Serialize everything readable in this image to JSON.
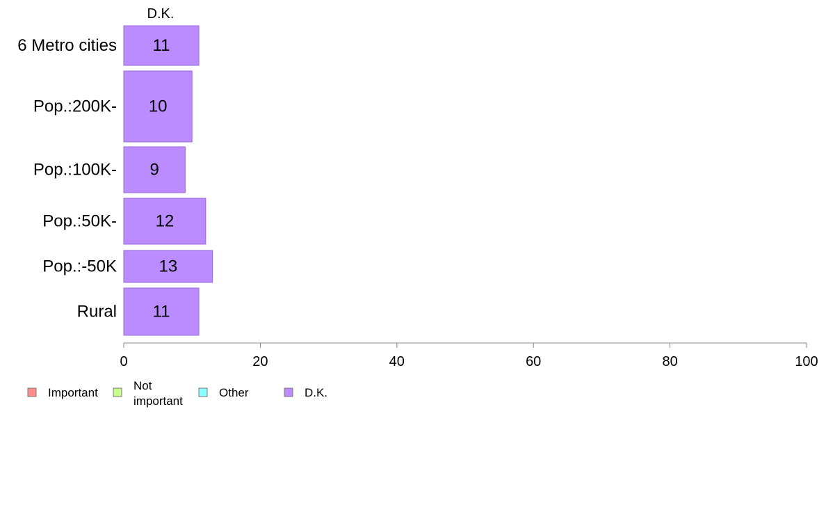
{
  "chart_data": {
    "type": "bar",
    "orientation": "horizontal",
    "stacked": true,
    "categories": [
      "6 Metro cities",
      "Pop.:200K-",
      "Pop.:100K-",
      "Pop.:50K-",
      "Pop.:-50K",
      "Rural"
    ],
    "series": [
      {
        "name": "Important",
        "color": "#ff8c8c",
        "values": [
          null,
          null,
          null,
          null,
          null,
          null
        ]
      },
      {
        "name": "Not important",
        "color": "#c8ff8c",
        "values": [
          null,
          null,
          null,
          null,
          null,
          null
        ]
      },
      {
        "name": "Other",
        "color": "#8cffff",
        "values": [
          null,
          null,
          null,
          null,
          null,
          null
        ]
      },
      {
        "name": "D.K.",
        "color": "#bb8cff",
        "values": [
          11,
          10,
          9,
          12,
          13,
          11
        ]
      }
    ],
    "visible_series_header": "D.K.",
    "xlim": [
      0,
      100
    ],
    "x_ticks": [
      0,
      20,
      40,
      60,
      80,
      100
    ],
    "grid": false,
    "legend_position": "bottom-left"
  },
  "legend": {
    "items": [
      {
        "lines": [
          "Important"
        ],
        "color": "#ff8c8c"
      },
      {
        "lines": [
          "Not",
          "important"
        ],
        "color": "#c8ff8c"
      },
      {
        "lines": [
          "Other"
        ],
        "color": "#8cffff"
      },
      {
        "lines": [
          "D.K."
        ],
        "color": "#bb8cff"
      }
    ]
  }
}
